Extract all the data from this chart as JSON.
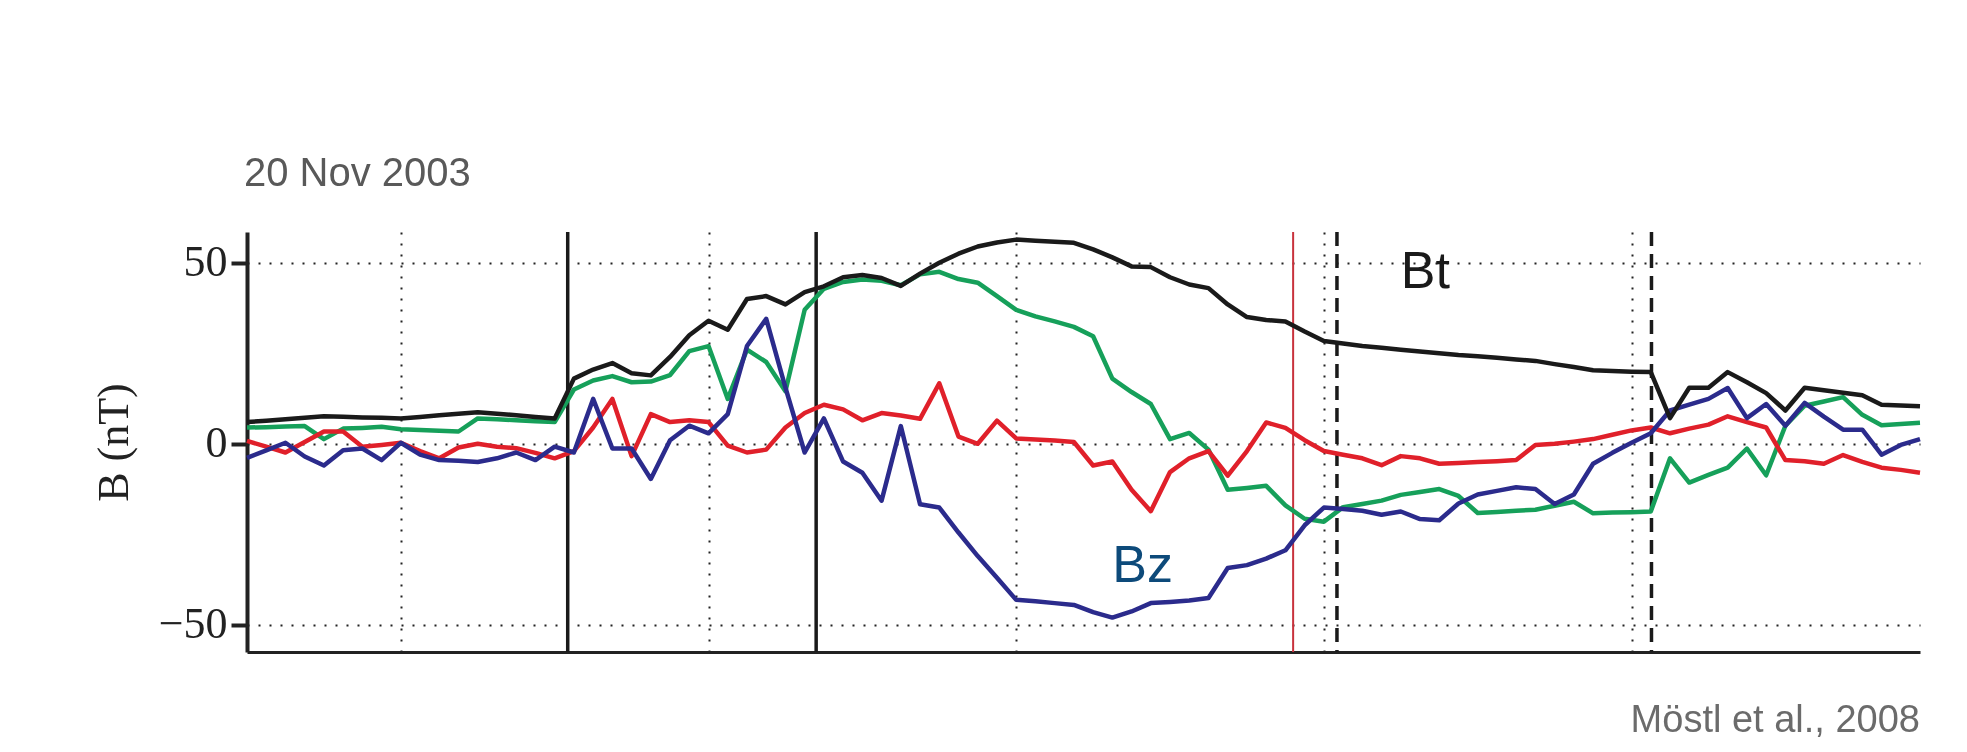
{
  "chart_data": {
    "type": "line",
    "title": "20 Nov 2003",
    "ylabel": "B (nT)",
    "annotations": [
      "Möstl et al., 2008"
    ],
    "categories": [
      null,
      null,
      null,
      null,
      null,
      null,
      null,
      null,
      null,
      null,
      null,
      null,
      null,
      null,
      null,
      null,
      null,
      null,
      null,
      null,
      null,
      null,
      null,
      null,
      null,
      null,
      null,
      null,
      null,
      null,
      null,
      null,
      null,
      null,
      null,
      null,
      null,
      null,
      null,
      null,
      null,
      null,
      null,
      null,
      null,
      null,
      null,
      null,
      null,
      null,
      null,
      null,
      null,
      null,
      null,
      null,
      null,
      null,
      null,
      null,
      null,
      null,
      null,
      null,
      null,
      null,
      null,
      null,
      null,
      null,
      null,
      null,
      null,
      null,
      null,
      null,
      null,
      null,
      null,
      null,
      null,
      null,
      null,
      null,
      null,
      null,
      null,
      null
    ],
    "ylim": [
      -57.5,
      58.5
    ],
    "yticks": [
      -50,
      0,
      50
    ],
    "grid": true,
    "tick_labels": "y",
    "series": [
      {
        "color": "#16a05a",
        "values": [
          4.5,
          4.6,
          4.8,
          4.9,
          1.3,
          4.2,
          4.4,
          4.7,
          4,
          3.8,
          3.6,
          3.4,
          7,
          6.8,
          6.5,
          6.2,
          6,
          15,
          17.5,
          18.7,
          17,
          17.2,
          19,
          25.6,
          27,
          12.4,
          26,
          22.6,
          14.5,
          37,
          42.8,
          44.7,
          45.4,
          45,
          43.8,
          46.8,
          47.5,
          45.5,
          44.5,
          40.8,
          37,
          35.2,
          33.8,
          32.3,
          29.7,
          18,
          14.3,
          11,
          1.3,
          3,
          -1.6,
          -12.7,
          -12.2,
          -11.6,
          -17,
          -20.7,
          -21.5,
          -17.5,
          -16.6,
          -15.7,
          -14.1,
          -13.3,
          -12.5,
          -14.4,
          -19.1,
          -18.8,
          -18.5,
          -18.2,
          -17.1,
          -16,
          -19.2,
          -19,
          -18.9,
          -18.7,
          -4,
          -10.7,
          -8.6,
          -6.6,
          -1.3,
          -8.7,
          5,
          10.5,
          11.7,
          12.9,
          8,
          5.1,
          5.5,
          5.8
        ]
      },
      {
        "color": "#e0202a",
        "values": [
          0.8,
          -0.8,
          -2.4,
          0.5,
          3.4,
          3.4,
          -0.8,
          -0.3,
          0.3,
          -2,
          -4,
          -1,
          0,
          -0.8,
          -1.2,
          -2.5,
          -4,
          -2,
          4.5,
          12.4,
          -3.4,
          8.2,
          6,
          6.5,
          6,
          -0.5,
          -2.4,
          -1.6,
          4.5,
          8.5,
          10.8,
          9.5,
          6.5,
          8.5,
          7.8,
          6.9,
          16.7,
          2,
          0,
          6.4,
          1.5,
          1.2,
          0.9,
          0.5,
          -6,
          -4.9,
          -12.7,
          -18.6,
          -7.8,
          -4,
          -2,
          -8.8,
          -2,
          5.9,
          4.4,
          1,
          -2,
          -3,
          -4,
          -5.9,
          -3.4,
          -4,
          -5.5,
          -5.3,
          -5,
          -4.8,
          -4.5,
          -0.3,
          0,
          0.6,
          1.3,
          2.5,
          3.7,
          4.5,
          2.9,
          4.2,
          5.3,
          7.6,
          6,
          4.5,
          -4.5,
          -4.8,
          -5.5,
          -3.1,
          -5,
          -6.6,
          -7.2,
          -8
        ]
      },
      {
        "name": "Bz",
        "color": "#2b2b8c",
        "values": [
          -3.9,
          -1.8,
          0.3,
          -3.5,
          -6,
          -1.8,
          -1.3,
          -4.5,
          0.3,
          -3,
          -4.5,
          -4.7,
          -5,
          -4,
          -2.4,
          -4.5,
          -0.8,
          -2.4,
          12.4,
          -1.3,
          -1.3,
          -9.7,
          1,
          5,
          2.9,
          8.2,
          27,
          34.5,
          15.5,
          -2.4,
          7,
          -4.9,
          -8,
          -15.7,
          4.9,
          -16.7,
          -17.6,
          -24.5,
          -31,
          -37,
          -43.1,
          -43.5,
          -44,
          -44.5,
          -46.5,
          -48,
          -46.3,
          -44,
          -43.7,
          -43.3,
          -42.6,
          -34.3,
          -33.5,
          -31.7,
          -29.4,
          -22.5,
          -17.6,
          -18,
          -18.5,
          -19.6,
          -18.7,
          -20.8,
          -21.1,
          -16.5,
          -14,
          -13,
          -12,
          -12.5,
          -16.6,
          -14,
          -5.5,
          -2.5,
          0.3,
          2.9,
          9.2,
          10.8,
          12.4,
          15.4,
          7.1,
          11,
          5,
          11.3,
          7.5,
          3.9,
          3.9,
          -3,
          -0.3,
          1.3
        ]
      },
      {
        "name": "Bt",
        "color": "#1a1a1a",
        "values": [
          6,
          6.4,
          6.8,
          7.2,
          7.6,
          7.5,
          7.3,
          7.2,
          7,
          7.4,
          7.9,
          8.3,
          8.7,
          8.3,
          7.9,
          7.4,
          7,
          18,
          20.5,
          22.3,
          19.5,
          18.9,
          24,
          30,
          34,
          31.5,
          40,
          40.8,
          38.5,
          41.9,
          43.5,
          46,
          46.6,
          45.8,
          43.6,
          47,
          50,
          52.5,
          54.5,
          55.6,
          56.4,
          56.1,
          55.8,
          55.5,
          53.7,
          51.5,
          49,
          48.8,
          46,
          44,
          43,
          38.5,
          35,
          34.2,
          33.8,
          31,
          28.4,
          27.7,
          27,
          26.5,
          26,
          25.5,
          25,
          24.5,
          24.2,
          23.8,
          23.3,
          22.9,
          22,
          21.2,
          20.3,
          20.1,
          19.9,
          19.8,
          7.1,
          15.5,
          15.5,
          19.8,
          17,
          14,
          9.2,
          15.5,
          14.8,
          14.1,
          13.4,
          10.8,
          10.6,
          10.4
        ]
      }
    ]
  }
}
